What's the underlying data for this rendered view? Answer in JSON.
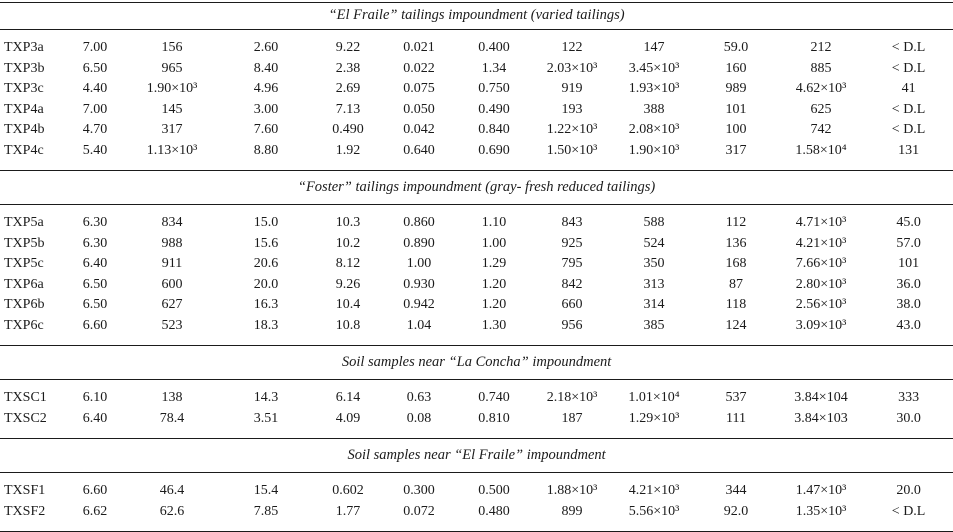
{
  "colors": {
    "background": "#ffffff",
    "text": "#1b1b1b",
    "rule_lines": "#1b1b1b"
  },
  "table": {
    "below_detection_label": "< D.L",
    "sections": [
      {
        "title": "“El Fraile” tailings impoundment (varied tailings)",
        "rows": [
          [
            "TXP3a",
            "7.00",
            "156",
            "2.60",
            "9.22",
            "0.021",
            "0.400",
            "122",
            "147",
            "59.0",
            "212",
            "< D.L"
          ],
          [
            "TXP3b",
            "6.50",
            "965",
            "8.40",
            "2.38",
            "0.022",
            "1.34",
            "2.03×10³",
            "3.45×10³",
            "160",
            "885",
            "< D.L"
          ],
          [
            "TXP3c",
            "4.40",
            "1.90×10³",
            "4.96",
            "2.69",
            "0.075",
            "0.750",
            "919",
            "1.93×10³",
            "989",
            "4.62×10³",
            "41"
          ],
          [
            "TXP4a",
            "7.00",
            "145",
            "3.00",
            "7.13",
            "0.050",
            "0.490",
            "193",
            "388",
            "101",
            "625",
            "< D.L"
          ],
          [
            "TXP4b",
            "4.70",
            "317",
            "7.60",
            "0.490",
            "0.042",
            "0.840",
            "1.22×10³",
            "2.08×10³",
            "100",
            "742",
            "< D.L"
          ],
          [
            "TXP4c",
            "5.40",
            "1.13×10³",
            "8.80",
            "1.92",
            "0.640",
            "0.690",
            "1.50×10³",
            "1.90×10³",
            "317",
            "1.58×10⁴",
            "131"
          ]
        ]
      },
      {
        "title": "“Foster” tailings impoundment (gray- fresh reduced tailings)",
        "rows": [
          [
            "TXP5a",
            "6.30",
            "834",
            "15.0",
            "10.3",
            "0.860",
            "1.10",
            "843",
            "588",
            "112",
            "4.71×10³",
            "45.0"
          ],
          [
            "TXP5b",
            "6.30",
            "988",
            "15.6",
            "10.2",
            "0.890",
            "1.00",
            "925",
            "524",
            "136",
            "4.21×10³",
            "57.0"
          ],
          [
            "TXP5c",
            "6.40",
            "911",
            "20.6",
            "8.12",
            "1.00",
            "1.29",
            "795",
            "350",
            "168",
            "7.66×10³",
            "101"
          ],
          [
            "TXP6a",
            "6.50",
            "600",
            "20.0",
            "9.26",
            "0.930",
            "1.20",
            "842",
            "313",
            "87",
            "2.80×10³",
            "36.0"
          ],
          [
            "TXP6b",
            "6.50",
            "627",
            "16.3",
            "10.4",
            "0.942",
            "1.20",
            "660",
            "314",
            "118",
            "2.56×10³",
            "38.0"
          ],
          [
            "TXP6c",
            "6.60",
            "523",
            "18.3",
            "10.8",
            "1.04",
            "1.30",
            "956",
            "385",
            "124",
            "3.09×10³",
            "43.0"
          ]
        ]
      },
      {
        "title": "Soil samples near “La Concha” impoundment",
        "rows": [
          [
            "TXSC1",
            "6.10",
            "138",
            "14.3",
            "6.14",
            "0.63",
            "0.740",
            "2.18×10³",
            "1.01×10⁴",
            "537",
            "3.84×104",
            "333"
          ],
          [
            "TXSC2",
            "6.40",
            "78.4",
            "3.51",
            "4.09",
            "0.08",
            "0.810",
            "187",
            "1.29×10³",
            "111",
            "3.84×103",
            "30.0"
          ]
        ]
      },
      {
        "title": "Soil samples near “El Fraile” impoundment",
        "rows": [
          [
            "TXSF1",
            "6.60",
            "46.4",
            "15.4",
            "0.602",
            "0.300",
            "0.500",
            "1.88×10³",
            "4.21×10³",
            "344",
            "1.47×10³",
            "20.0"
          ],
          [
            "TXSF2",
            "6.62",
            "62.6",
            "7.85",
            "1.77",
            "0.072",
            "0.480",
            "899",
            "5.56×10³",
            "92.0",
            "1.35×10³",
            "< D.L"
          ]
        ]
      }
    ]
  }
}
